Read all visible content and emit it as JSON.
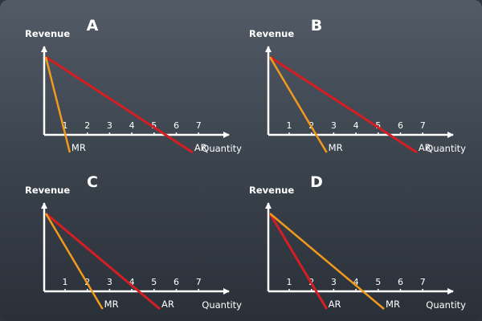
{
  "colors": {
    "axis": "#ffffff",
    "ar_line": "#d61d24",
    "mr_line": "#f29a1c",
    "text": "#ffffff"
  },
  "panels": [
    {
      "label": "A",
      "y_axis_label": "Revenue",
      "x_axis_label": "Quantity",
      "ticks": [
        "1",
        "2",
        "3",
        "4",
        "5",
        "6",
        "7"
      ],
      "ar": {
        "label": "AR",
        "x_intercept": 5.5
      },
      "mr": {
        "label": "MR",
        "x_intercept": 1.0
      }
    },
    {
      "label": "B",
      "y_axis_label": "Revenue",
      "x_axis_label": "Quantity",
      "ticks": [
        "1",
        "2",
        "3",
        "4",
        "5",
        "6",
        "7"
      ],
      "ar": {
        "label": "AR",
        "x_intercept": 5.5
      },
      "mr": {
        "label": "MR",
        "x_intercept": 2.2
      }
    },
    {
      "label": "C",
      "y_axis_label": "Revenue",
      "x_axis_label": "Quantity",
      "ticks": [
        "1",
        "2",
        "3",
        "4",
        "5",
        "6",
        "7"
      ],
      "ar": {
        "label": "AR",
        "x_intercept": 4.3
      },
      "mr": {
        "label": "MR",
        "x_intercept": 2.2
      }
    },
    {
      "label": "D",
      "y_axis_label": "Revenue",
      "x_axis_label": "Quantity",
      "ticks": [
        "1",
        "2",
        "3",
        "4",
        "5",
        "6",
        "7"
      ],
      "ar": {
        "label": "AR",
        "x_intercept": 2.2
      },
      "mr": {
        "label": "MR",
        "x_intercept": 4.3
      }
    }
  ]
}
